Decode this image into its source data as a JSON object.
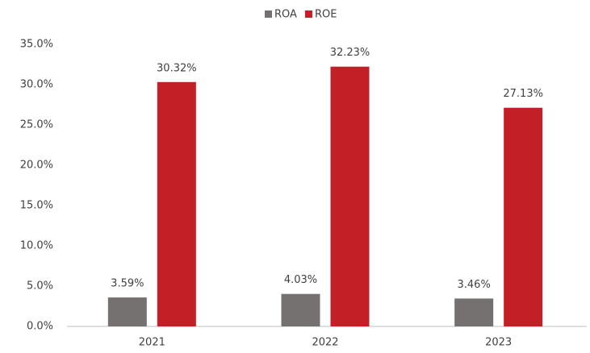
{
  "chart_data": {
    "type": "bar",
    "categories": [
      "2021",
      "2022",
      "2023"
    ],
    "series": [
      {
        "name": "ROA",
        "color": "#767171",
        "values": [
          3.59,
          4.03,
          3.46
        ],
        "value_labels": [
          "3.59%",
          "4.03%",
          "3.46%"
        ]
      },
      {
        "name": "ROE",
        "color": "#c21f27",
        "values": [
          30.32,
          32.23,
          27.13
        ],
        "value_labels": [
          "30.32%",
          "32.23%",
          "27.13%"
        ]
      }
    ],
    "ylim": [
      0,
      35
    ],
    "yticks": [
      {
        "value": 0,
        "label": "0.0%"
      },
      {
        "value": 5,
        "label": "5.0%"
      },
      {
        "value": 10,
        "label": "10.0%"
      },
      {
        "value": 15,
        "label": "15.0%"
      },
      {
        "value": 20,
        "label": "20.0%"
      },
      {
        "value": 25,
        "label": "25.0%"
      },
      {
        "value": 30,
        "label": "30.0%"
      },
      {
        "value": 35,
        "label": "35.0%"
      }
    ],
    "grid": false,
    "legend": "top"
  }
}
